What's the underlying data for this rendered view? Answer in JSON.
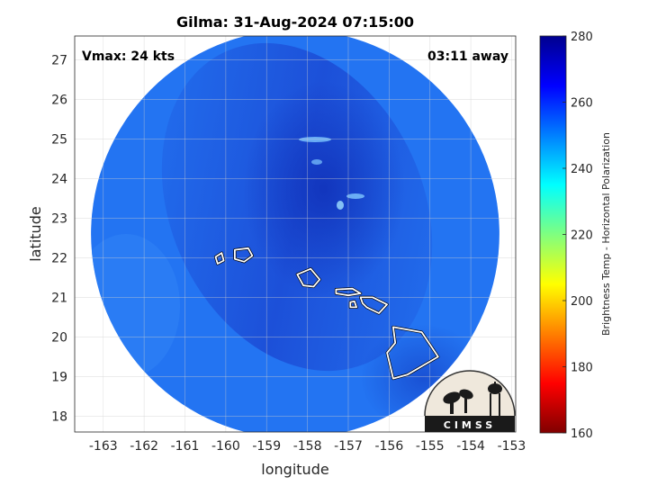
{
  "title": "Gilma: 31-Aug-2024 07:15:00",
  "vmax_label": "Vmax: 24 kts",
  "time_away_label": "03:11 away",
  "xlabel": "longitude",
  "ylabel": "latitude",
  "colorbar_label": "Brightness Temp - Horizontal Polarization",
  "logo_text": "CIMSS",
  "x_axis": {
    "min": -163.7,
    "max": -152.9,
    "ticks": [
      -163,
      -162,
      -161,
      -160,
      -159,
      -158,
      -157,
      -156,
      -155,
      -154,
      -153
    ]
  },
  "y_axis": {
    "min": 17.6,
    "max": 27.6,
    "ticks": [
      18,
      19,
      20,
      21,
      22,
      23,
      24,
      25,
      26,
      27
    ]
  },
  "colorbar": {
    "min": 160,
    "max": 280,
    "ticks": [
      160,
      180,
      200,
      220,
      240,
      260,
      280
    ],
    "colormap": "jet"
  },
  "swath": {
    "center_lon": -158.3,
    "center_lat": 22.6,
    "radius_deg": 5.0
  },
  "colors": {
    "background_field": "#1f6ff0",
    "dark_band": "#1640cc",
    "coastline": "#ffffff"
  },
  "chart_data": {
    "type": "heatmap",
    "title": "Gilma: 31-Aug-2024 07:15:00",
    "xlabel": "longitude",
    "ylabel": "latitude",
    "xlim": [
      -163.7,
      -152.9
    ],
    "ylim": [
      17.6,
      27.6
    ],
    "clim": [
      160,
      280
    ],
    "colorbar_label": "Brightness Temp - Horizontal Polarization",
    "grid": true,
    "approx_field_range": [
      248,
      268
    ],
    "islands": [
      {
        "name": "",
        "points": [
          [
            -160.25,
            22.02
          ],
          [
            -160.1,
            22.12
          ],
          [
            -160.05,
            21.93
          ],
          [
            -160.2,
            21.85
          ]
        ]
      },
      {
        "name": "",
        "points": [
          [
            -159.78,
            22.2
          ],
          [
            -159.45,
            22.24
          ],
          [
            -159.35,
            22.05
          ],
          [
            -159.55,
            21.9
          ],
          [
            -159.78,
            21.97
          ]
        ]
      },
      {
        "name": "",
        "points": [
          [
            -158.25,
            21.58
          ],
          [
            -157.92,
            21.72
          ],
          [
            -157.7,
            21.45
          ],
          [
            -157.85,
            21.27
          ],
          [
            -158.1,
            21.3
          ]
        ]
      },
      {
        "name": "",
        "points": [
          [
            -157.3,
            21.2
          ],
          [
            -156.9,
            21.22
          ],
          [
            -156.7,
            21.1
          ],
          [
            -157.0,
            21.05
          ],
          [
            -157.3,
            21.1
          ]
        ]
      },
      {
        "name": "",
        "points": [
          [
            -156.95,
            20.88
          ],
          [
            -156.85,
            20.9
          ],
          [
            -156.8,
            20.75
          ],
          [
            -156.95,
            20.75
          ]
        ]
      },
      {
        "name": "",
        "points": [
          [
            -156.7,
            21.0
          ],
          [
            -156.4,
            21.0
          ],
          [
            -156.05,
            20.82
          ],
          [
            -156.25,
            20.6
          ],
          [
            -156.55,
            20.75
          ],
          [
            -156.65,
            20.85
          ]
        ]
      },
      {
        "name": "",
        "points": [
          [
            -155.9,
            20.25
          ],
          [
            -155.2,
            20.12
          ],
          [
            -154.8,
            19.5
          ],
          [
            -155.55,
            19.05
          ],
          [
            -155.9,
            18.95
          ],
          [
            -156.05,
            19.6
          ],
          [
            -155.85,
            19.85
          ]
        ]
      }
    ]
  }
}
